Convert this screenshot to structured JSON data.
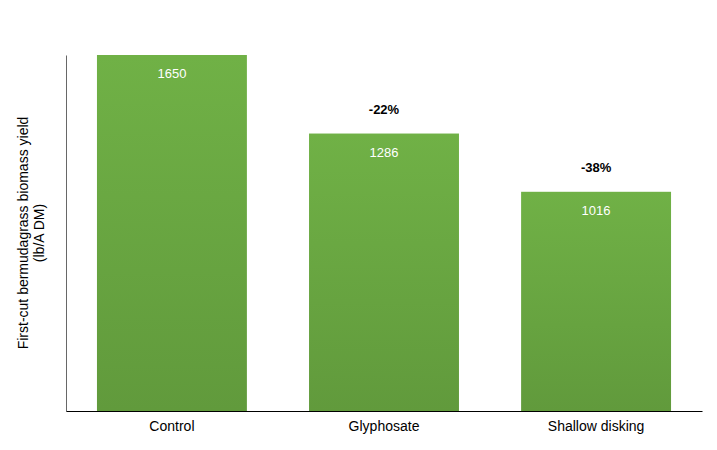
{
  "chart_data": {
    "type": "bar",
    "y_label": "First-cut bermudagrass biomass yield\n(lb/A DM)",
    "categories": [
      "Control",
      "Glyphosate",
      "Shallow disking"
    ],
    "values": [
      1650,
      1286,
      1016
    ],
    "annotations": [
      null,
      "-22%",
      "-38%"
    ],
    "color": "#6aa842",
    "ylim": [
      0,
      1650
    ],
    "yticks": [],
    "grid": false,
    "data_labels": true,
    "tick_labels": "x"
  }
}
